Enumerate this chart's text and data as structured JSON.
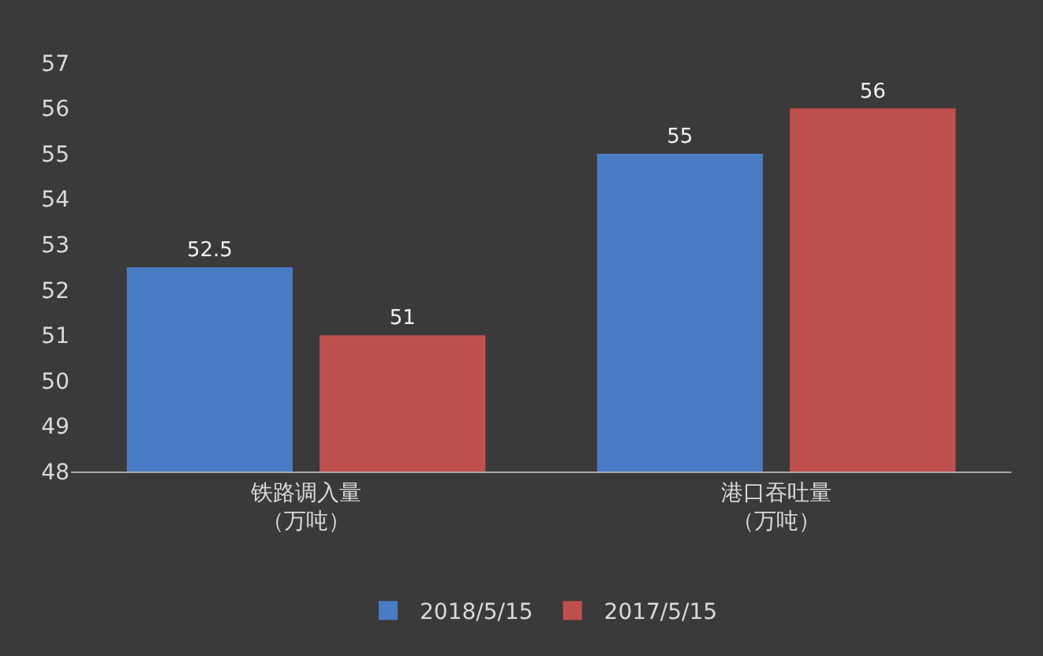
{
  "chart_data": {
    "type": "bar",
    "categories": [
      "铁路调入量（万吨）",
      "港口吞吐量（万吨）"
    ],
    "series": [
      {
        "name": "2018/5/15",
        "color": "#4a7cc4",
        "values": [
          52.5,
          55
        ]
      },
      {
        "name": "2017/5/15",
        "color": "#c0504d",
        "values": [
          51,
          56
        ]
      }
    ],
    "ylim": [
      48,
      57
    ],
    "yticks": [
      48,
      49,
      50,
      51,
      52,
      53,
      54,
      55,
      56,
      57
    ],
    "data_labels": true,
    "grid": false,
    "legend": "bottom"
  }
}
